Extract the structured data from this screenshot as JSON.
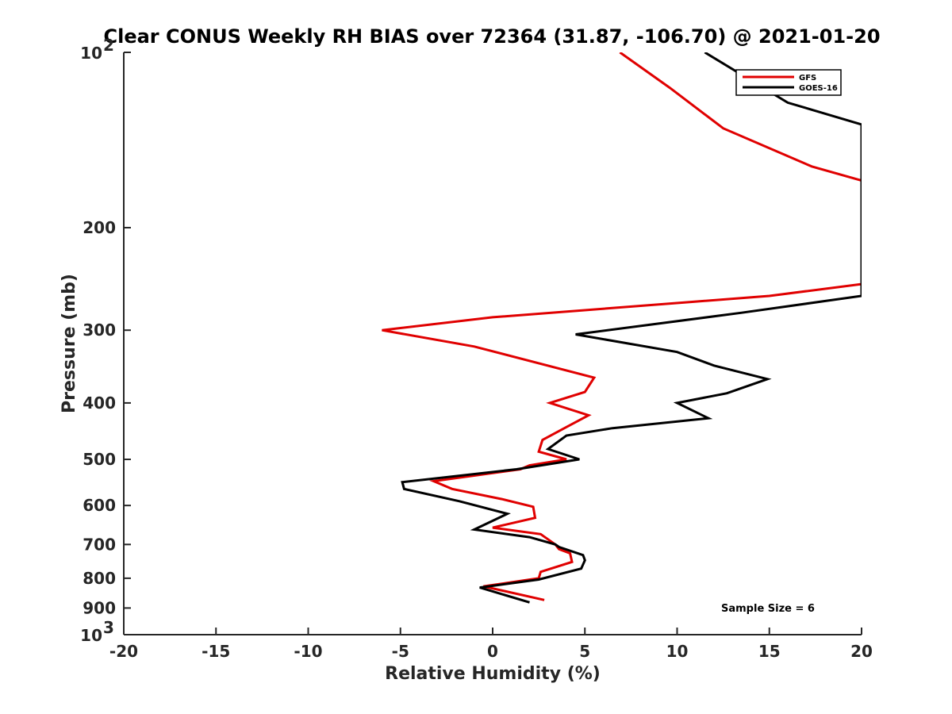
{
  "chart_data": {
    "type": "line",
    "title": "Clear CONUS Weekly RH BIAS over 72364 (31.87, -106.70) @ 2021-01-20",
    "xlabel": "Relative Humidity (%)",
    "ylabel": "Pressure (mb)",
    "xlim": [
      -20,
      20
    ],
    "ylim": [
      100,
      1000
    ],
    "yscale": "log",
    "y_reversed": true,
    "grid": false,
    "legend_position": "top-right",
    "x_ticks": [
      "-20",
      "-15",
      "-10",
      "-5",
      "0",
      "5",
      "10",
      "15",
      "20"
    ],
    "y_ticks": [
      {
        "value": 100,
        "base": "10",
        "exp": "2"
      },
      {
        "value": 200,
        "label": "200"
      },
      {
        "value": 300,
        "label": "300"
      },
      {
        "value": 400,
        "label": "400"
      },
      {
        "value": 500,
        "label": "500"
      },
      {
        "value": 600,
        "label": "600"
      },
      {
        "value": 700,
        "label": "700"
      },
      {
        "value": 800,
        "label": "800"
      },
      {
        "value": 900,
        "label": "900"
      },
      {
        "value": 1000,
        "base": "10",
        "exp": "3"
      }
    ],
    "series": [
      {
        "name": "GFS",
        "color": "#e00000",
        "points": [
          [
            6.9,
            100
          ],
          [
            9.6,
            115
          ],
          [
            12.5,
            135
          ],
          [
            17.3,
            157
          ],
          [
            20.0,
            166
          ],
          [
            20.0,
            250
          ],
          [
            15.0,
            262
          ],
          [
            0.0,
            285
          ],
          [
            -6.0,
            300
          ],
          [
            -1.0,
            320
          ],
          [
            5.5,
            362
          ],
          [
            5.0,
            383
          ],
          [
            3.1,
            400
          ],
          [
            5.2,
            420
          ],
          [
            4.0,
            440
          ],
          [
            2.7,
            463
          ],
          [
            2.5,
            485
          ],
          [
            4.0,
            500
          ],
          [
            2.0,
            512
          ],
          [
            1.5,
            520
          ],
          [
            -3.2,
            545
          ],
          [
            -2.2,
            562
          ],
          [
            0.5,
            585
          ],
          [
            2.2,
            603
          ],
          [
            2.3,
            630
          ],
          [
            0.0,
            655
          ],
          [
            2.6,
            672
          ],
          [
            3.4,
            700
          ],
          [
            3.6,
            713
          ],
          [
            4.2,
            725
          ],
          [
            4.3,
            750
          ],
          [
            2.6,
            780
          ],
          [
            2.5,
            800
          ],
          [
            -0.5,
            826
          ],
          [
            2.8,
            872
          ]
        ]
      },
      {
        "name": "GOES-16",
        "color": "#000000",
        "points": [
          [
            11.5,
            100
          ],
          [
            16.0,
            122
          ],
          [
            20.0,
            133
          ],
          [
            20.0,
            262
          ],
          [
            13.5,
            280
          ],
          [
            4.5,
            305
          ],
          [
            10.0,
            327
          ],
          [
            12.0,
            345
          ],
          [
            14.9,
            364
          ],
          [
            12.7,
            385
          ],
          [
            10.0,
            400
          ],
          [
            11.7,
            425
          ],
          [
            6.5,
            442
          ],
          [
            4.0,
            455
          ],
          [
            3.0,
            480
          ],
          [
            4.7,
            500
          ],
          [
            1.3,
            520
          ],
          [
            -4.9,
            547
          ],
          [
            -4.8,
            562
          ],
          [
            -1.8,
            590
          ],
          [
            0.8,
            620
          ],
          [
            -1.0,
            660
          ],
          [
            2.0,
            680
          ],
          [
            3.4,
            700
          ],
          [
            3.6,
            707
          ],
          [
            4.9,
            730
          ],
          [
            5.0,
            745
          ],
          [
            4.8,
            770
          ],
          [
            2.5,
            804
          ],
          [
            -0.7,
            830
          ],
          [
            2.0,
            880
          ]
        ]
      }
    ],
    "annotations": [
      "Sample Size = 6"
    ]
  }
}
